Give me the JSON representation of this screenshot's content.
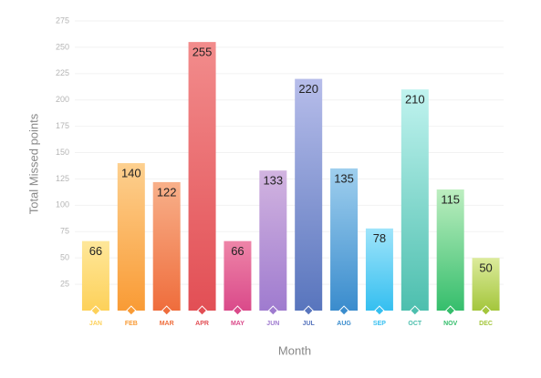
{
  "chart_data": {
    "type": "bar",
    "x_label": "Month",
    "y_label": "Total Missed points",
    "categories": [
      "JAN",
      "FEB",
      "MAR",
      "APR",
      "MAY",
      "JUN",
      "JUL",
      "AUG",
      "SEP",
      "OCT",
      "NOV",
      "DEC"
    ],
    "values": [
      66,
      140,
      122,
      255,
      66,
      133,
      220,
      135,
      78,
      210,
      115,
      50
    ],
    "colors": [
      [
        "#fee79a",
        "#fdd15a"
      ],
      [
        "#fdd08f",
        "#f99b35"
      ],
      [
        "#f8b08a",
        "#ef6d3c"
      ],
      [
        "#f28c8c",
        "#e24f55"
      ],
      [
        "#ee85a8",
        "#da4a8a"
      ],
      [
        "#d2b4e0",
        "#9f7bcf"
      ],
      [
        "#b7bdea",
        "#5875bd"
      ],
      [
        "#9fcfee",
        "#3a8ccd"
      ],
      [
        "#9fe4fa",
        "#35bff0"
      ],
      [
        "#c0f3ef",
        "#4dbfae"
      ],
      [
        "#bdeec0",
        "#35be6c"
      ],
      [
        "#dceb9c",
        "#a4c63c"
      ]
    ],
    "ylim": [
      0,
      275
    ],
    "yticks": [
      25,
      50,
      75,
      100,
      125,
      150,
      175,
      200,
      225,
      250,
      275
    ],
    "grid": true
  }
}
